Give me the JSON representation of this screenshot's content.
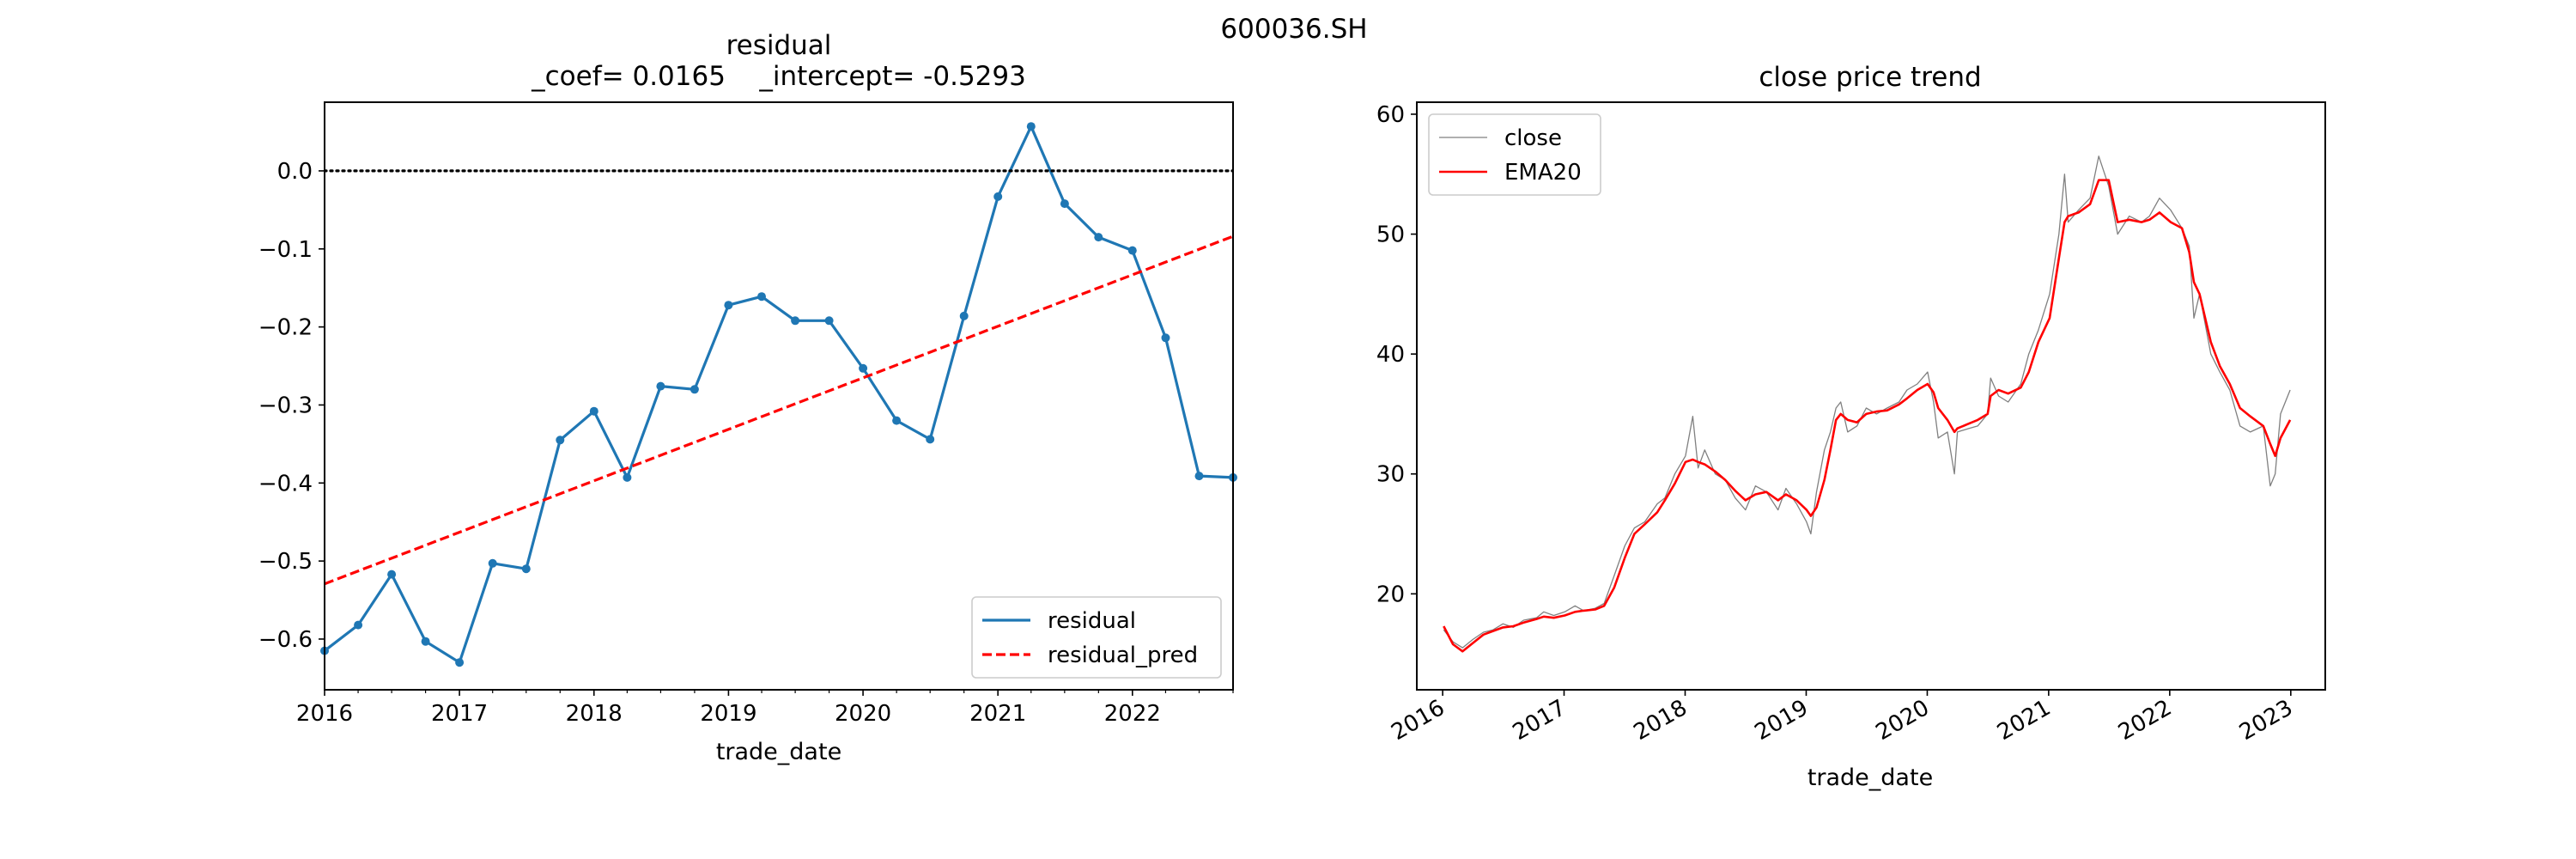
{
  "figure": {
    "suptitle": "600036.SH"
  },
  "chart_data": [
    {
      "type": "line",
      "title": "residual\n_coef= 0.0165    _intercept= -0.5293",
      "xlabel": "trade_date",
      "ylabel": "",
      "xlim": [
        "2016-01-01",
        "2022-10-01"
      ],
      "ylim": [
        -0.665,
        0.088
      ],
      "x_ticks": [
        "2016",
        "2017",
        "2018",
        "2019",
        "2020",
        "2021",
        "2022"
      ],
      "y_ticks": [
        -0.6,
        -0.5,
        -0.4,
        -0.3,
        -0.2,
        -0.1,
        0.0
      ],
      "y_tick_labels": [
        "−0.6",
        "−0.5",
        "−0.4",
        "−0.3",
        "−0.2",
        "−0.1",
        "0.0"
      ],
      "legend_position": "lower-right",
      "grid": false,
      "series": [
        {
          "name": "residual",
          "style": "solid-with-dot-markers",
          "color": "#1f77b4",
          "x": [
            "2016-01-01",
            "2016-04-01",
            "2016-07-01",
            "2016-10-01",
            "2017-01-01",
            "2017-04-01",
            "2017-07-01",
            "2017-10-01",
            "2018-01-01",
            "2018-04-01",
            "2018-07-01",
            "2018-10-01",
            "2019-01-01",
            "2019-04-01",
            "2019-07-01",
            "2019-10-01",
            "2020-01-01",
            "2020-04-01",
            "2020-07-01",
            "2020-10-01",
            "2021-01-01",
            "2021-04-01",
            "2021-07-01",
            "2021-10-01",
            "2022-01-01",
            "2022-04-01",
            "2022-07-01",
            "2022-10-01"
          ],
          "values": [
            -0.615,
            -0.582,
            -0.517,
            -0.603,
            -0.63,
            -0.503,
            -0.51,
            -0.345,
            -0.308,
            -0.393,
            -0.276,
            -0.28,
            -0.172,
            -0.161,
            -0.192,
            -0.192,
            -0.253,
            -0.32,
            -0.344,
            -0.186,
            -0.033,
            0.057,
            -0.042,
            -0.085,
            -0.102,
            -0.214,
            -0.391,
            -0.393
          ]
        },
        {
          "name": "residual_pred",
          "style": "dashed",
          "color": "#ff0000",
          "x": [
            "2016-01-01",
            "2022-10-01"
          ],
          "values": [
            -0.5293,
            -0.0838
          ]
        },
        {
          "name": "",
          "style": "dotted",
          "color": "#000000",
          "x": [
            "2016-01-01",
            "2022-10-01"
          ],
          "values": [
            0.0,
            0.0
          ]
        }
      ]
    },
    {
      "type": "line",
      "title": "close price trend",
      "xlabel": "trade_date",
      "ylabel": "",
      "xlim": [
        "2015-10-15",
        "2023-04-15"
      ],
      "ylim": [
        12,
        61
      ],
      "x_ticks": [
        "2016",
        "2017",
        "2018",
        "2019",
        "2020",
        "2021",
        "2022",
        "2023"
      ],
      "x_tick_rotation": 30,
      "y_ticks": [
        20,
        30,
        40,
        50,
        60
      ],
      "legend_position": "upper-left",
      "grid": false,
      "series": [
        {
          "name": "close",
          "style": "thin-solid",
          "color": "#808080",
          "x": [
            "2016-01-04",
            "2016-02-01",
            "2016-03-01",
            "2016-04-01",
            "2016-05-03",
            "2016-06-01",
            "2016-07-01",
            "2016-08-01",
            "2016-09-01",
            "2016-10-10",
            "2016-11-01",
            "2016-12-01",
            "2017-01-03",
            "2017-02-03",
            "2017-03-01",
            "2017-04-05",
            "2017-05-02",
            "2017-06-01",
            "2017-07-03",
            "2017-08-01",
            "2017-09-01",
            "2017-10-09",
            "2017-11-01",
            "2017-12-01",
            "2018-01-02",
            "2018-01-24",
            "2018-02-09",
            "2018-03-01",
            "2018-04-02",
            "2018-05-02",
            "2018-06-01",
            "2018-07-02",
            "2018-08-01",
            "2018-09-03",
            "2018-10-08",
            "2018-11-01",
            "2018-12-03",
            "2019-01-02",
            "2019-01-15",
            "2019-02-01",
            "2019-02-25",
            "2019-03-15",
            "2019-04-01",
            "2019-04-15",
            "2019-05-06",
            "2019-06-03",
            "2019-07-01",
            "2019-08-01",
            "2019-09-02",
            "2019-10-08",
            "2019-11-01",
            "2019-12-02",
            "2020-01-02",
            "2020-01-20",
            "2020-02-03",
            "2020-03-02",
            "2020-03-23",
            "2020-04-01",
            "2020-05-06",
            "2020-06-01",
            "2020-07-01",
            "2020-07-10",
            "2020-08-03",
            "2020-09-01",
            "2020-10-09",
            "2020-11-02",
            "2020-12-01",
            "2021-01-04",
            "2021-02-01",
            "2021-02-18",
            "2021-03-01",
            "2021-04-01",
            "2021-05-06",
            "2021-06-01",
            "2021-07-01",
            "2021-07-28",
            "2021-09-01",
            "2021-10-08",
            "2021-11-01",
            "2021-12-01",
            "2022-01-04",
            "2022-02-07",
            "2022-03-01",
            "2022-03-15",
            "2022-04-01",
            "2022-05-05",
            "2022-06-01",
            "2022-07-01",
            "2022-08-01",
            "2022-09-01",
            "2022-10-10",
            "2022-10-31",
            "2022-11-15",
            "2022-12-01",
            "2022-12-30"
          ],
          "values": [
            17.0,
            16.0,
            15.5,
            16.2,
            16.8,
            17.0,
            17.5,
            17.2,
            17.8,
            18.0,
            18.5,
            18.2,
            18.5,
            19.0,
            18.6,
            18.8,
            19.2,
            21.5,
            24.0,
            25.5,
            26.0,
            27.5,
            28.0,
            30.0,
            31.5,
            34.8,
            30.5,
            32.0,
            30.0,
            29.5,
            28.0,
            27.0,
            29.0,
            28.5,
            27.0,
            28.8,
            27.5,
            26.0,
            25.0,
            28.5,
            32.0,
            33.5,
            35.5,
            36.0,
            33.5,
            34.0,
            35.5,
            35.0,
            35.5,
            36.0,
            37.0,
            37.5,
            38.5,
            36.0,
            33.0,
            33.5,
            30.0,
            33.5,
            33.8,
            34.0,
            35.0,
            38.0,
            36.5,
            36.0,
            37.5,
            40.0,
            42.0,
            45.0,
            50.0,
            55.0,
            51.0,
            52.0,
            53.0,
            56.5,
            54.0,
            50.0,
            51.5,
            51.0,
            51.5,
            53.0,
            52.0,
            50.5,
            49.0,
            43.0,
            45.0,
            40.0,
            38.5,
            37.0,
            34.0,
            33.5,
            34.0,
            29.0,
            30.0,
            35.0,
            37.0
          ]
        },
        {
          "name": "EMA20",
          "style": "solid",
          "color": "#ff0000",
          "x": [
            "2016-01-04",
            "2016-02-01",
            "2016-03-01",
            "2016-04-01",
            "2016-05-03",
            "2016-06-01",
            "2016-07-01",
            "2016-08-01",
            "2016-09-01",
            "2016-10-10",
            "2016-11-01",
            "2016-12-01",
            "2017-01-03",
            "2017-02-03",
            "2017-03-01",
            "2017-04-05",
            "2017-05-02",
            "2017-06-01",
            "2017-07-03",
            "2017-08-01",
            "2017-09-01",
            "2017-10-09",
            "2017-11-01",
            "2017-12-01",
            "2018-01-02",
            "2018-01-24",
            "2018-02-09",
            "2018-03-01",
            "2018-04-02",
            "2018-05-02",
            "2018-06-01",
            "2018-07-02",
            "2018-08-01",
            "2018-09-03",
            "2018-10-08",
            "2018-11-01",
            "2018-12-03",
            "2019-01-02",
            "2019-01-15",
            "2019-02-01",
            "2019-02-25",
            "2019-03-15",
            "2019-04-01",
            "2019-04-15",
            "2019-05-06",
            "2019-06-03",
            "2019-07-01",
            "2019-08-01",
            "2019-09-02",
            "2019-10-08",
            "2019-11-01",
            "2019-12-02",
            "2020-01-02",
            "2020-01-20",
            "2020-02-03",
            "2020-03-02",
            "2020-03-23",
            "2020-04-01",
            "2020-05-06",
            "2020-06-01",
            "2020-07-01",
            "2020-07-10",
            "2020-08-03",
            "2020-09-01",
            "2020-10-09",
            "2020-11-02",
            "2020-12-01",
            "2021-01-04",
            "2021-02-01",
            "2021-02-18",
            "2021-03-01",
            "2021-04-01",
            "2021-05-06",
            "2021-06-01",
            "2021-07-01",
            "2021-07-28",
            "2021-09-01",
            "2021-10-08",
            "2021-11-01",
            "2021-12-01",
            "2022-01-04",
            "2022-02-07",
            "2022-03-01",
            "2022-03-15",
            "2022-04-01",
            "2022-05-05",
            "2022-06-01",
            "2022-07-01",
            "2022-08-01",
            "2022-09-01",
            "2022-10-10",
            "2022-10-31",
            "2022-11-15",
            "2022-12-01",
            "2022-12-30"
          ],
          "values": [
            17.3,
            15.8,
            15.2,
            15.9,
            16.6,
            16.9,
            17.2,
            17.3,
            17.6,
            17.9,
            18.1,
            18.0,
            18.2,
            18.5,
            18.6,
            18.7,
            19.0,
            20.5,
            23.0,
            25.0,
            25.8,
            26.8,
            27.8,
            29.2,
            31.0,
            31.2,
            31.0,
            30.8,
            30.2,
            29.5,
            28.6,
            27.8,
            28.3,
            28.5,
            27.8,
            28.3,
            27.8,
            27.0,
            26.5,
            27.2,
            29.5,
            32.0,
            34.5,
            35.0,
            34.5,
            34.3,
            35.0,
            35.2,
            35.3,
            35.8,
            36.3,
            37.0,
            37.5,
            36.8,
            35.5,
            34.5,
            33.5,
            33.8,
            34.2,
            34.5,
            35.0,
            36.5,
            37.0,
            36.7,
            37.2,
            38.5,
            41.0,
            43.0,
            48.0,
            51.0,
            51.5,
            51.8,
            52.5,
            54.5,
            54.5,
            51.0,
            51.2,
            51.0,
            51.2,
            51.8,
            51.0,
            50.5,
            48.5,
            46.0,
            45.0,
            41.0,
            39.0,
            37.5,
            35.5,
            34.8,
            34.0,
            32.5,
            31.5,
            33.0,
            34.5
          ]
        }
      ]
    }
  ]
}
